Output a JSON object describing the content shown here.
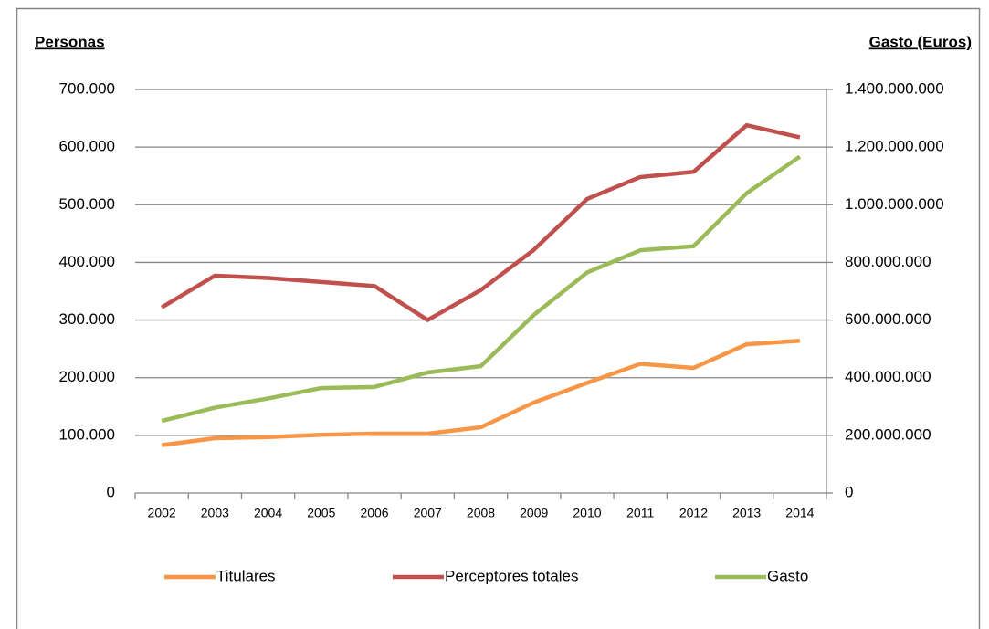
{
  "chart_data": {
    "type": "line",
    "y_label": "Personas",
    "y2_label": "Gasto (Euros)",
    "categories": [
      "2002",
      "2003",
      "2004",
      "2005",
      "2006",
      "2007",
      "2008",
      "2009",
      "2010",
      "2011",
      "2012",
      "2013",
      "2014"
    ],
    "series": [
      {
        "name": "Titulares",
        "color": "#f79646",
        "values": [
          83000,
          95000,
          97000,
          101000,
          103000,
          103000,
          114000,
          157000,
          191000,
          224000,
          217000,
          258000,
          264000
        ]
      },
      {
        "name": "Perceptores totales",
        "color": "#c0504d",
        "values": [
          322000,
          377000,
          373000,
          366000,
          359000,
          300000,
          352000,
          422000,
          510000,
          548000,
          557000,
          638000,
          617000
        ]
      },
      {
        "name": "Gasto",
        "color": "#9bbb59",
        "axis": "y2",
        "values": [
          250000000,
          296000000,
          328000000,
          364000000,
          368000000,
          418000000,
          440000000,
          618000000,
          765000000,
          842000000,
          856000000,
          1040000000,
          1167000000
        ]
      }
    ],
    "ylim": [
      0,
      700000
    ],
    "yticks": [
      0,
      {
        "value": 100000,
        "label": "100.000"
      },
      {
        "value": 200000,
        "label": "200.000"
      },
      {
        "value": 300000,
        "label": "300.000"
      },
      {
        "value": 400000,
        "label": "400.000"
      },
      {
        "value": 500000,
        "label": "500.000"
      },
      {
        "value": 600000,
        "label": "600.000"
      },
      {
        "value": 700000,
        "label": "700.000"
      }
    ],
    "y2lim": [
      0,
      1400000000
    ],
    "y2ticks": [
      0,
      {
        "value": 200000000,
        "label": "200.000.000"
      },
      {
        "value": 400000000,
        "label": "400.000.000"
      },
      {
        "value": 600000000,
        "label": "600.000.000"
      },
      {
        "value": 800000000,
        "label": "800.000.000"
      },
      {
        "value": 1000000000,
        "label": "1.000.000.000"
      },
      {
        "value": 1200000000,
        "label": "1.200.000.000"
      },
      {
        "value": 1400000000,
        "label": "1.400.000.000"
      }
    ],
    "grid": true,
    "legend": "bottom"
  }
}
